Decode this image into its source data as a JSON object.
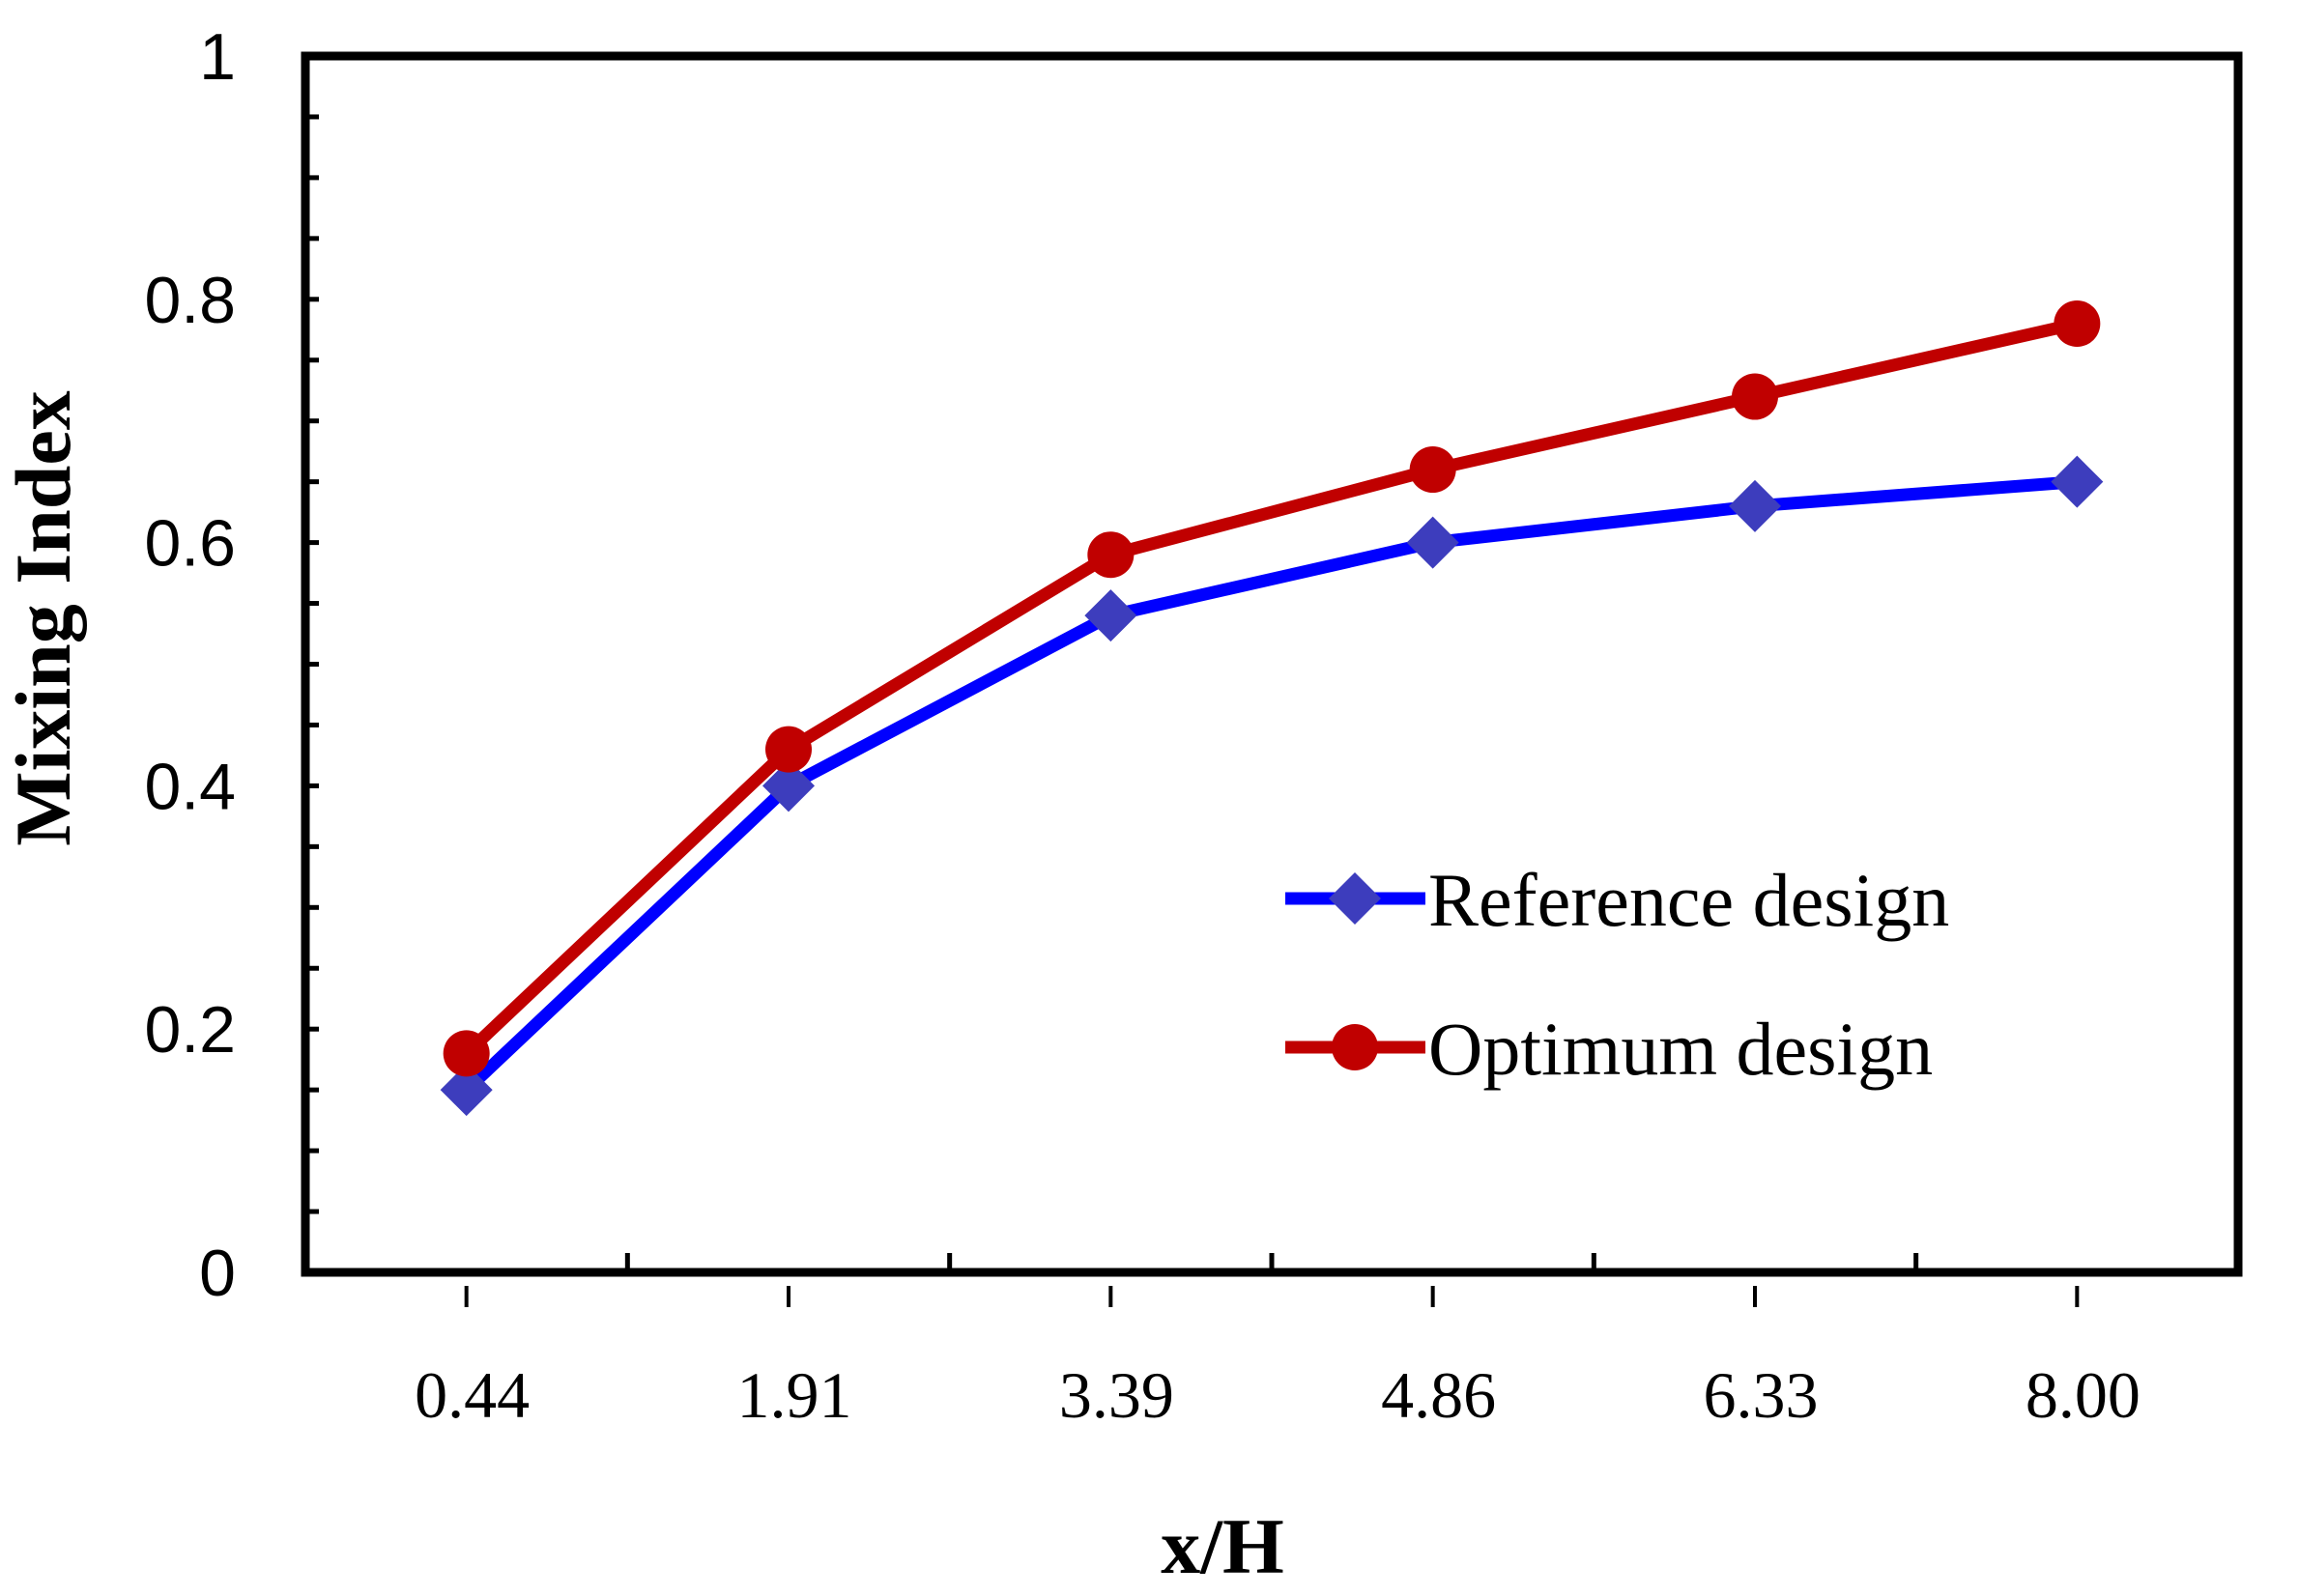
{
  "chart_data": {
    "type": "line",
    "title": "",
    "xlabel": "x/H",
    "ylabel": "Mixing Index",
    "categories": [
      "0.44",
      "1.91",
      "3.39",
      "4.86",
      "6.33",
      "8.00"
    ],
    "ylim": [
      0,
      1
    ],
    "yticks": [
      "0",
      "0.2",
      "0.4",
      "0.6",
      "0.8",
      "1"
    ],
    "grid": false,
    "legend_position": "center-right",
    "series": [
      {
        "name": "Reference design",
        "values": [
          0.15,
          0.4,
          0.54,
          0.6,
          0.63,
          0.65
        ],
        "color": "#0000FF",
        "marker": "diamond",
        "marker_color": "#3D3DBD"
      },
      {
        "name": "Optimum design",
        "values": [
          0.18,
          0.43,
          0.59,
          0.66,
          0.72,
          0.78
        ],
        "color": "#C00000",
        "marker": "circle",
        "marker_color": "#C00000"
      }
    ]
  }
}
